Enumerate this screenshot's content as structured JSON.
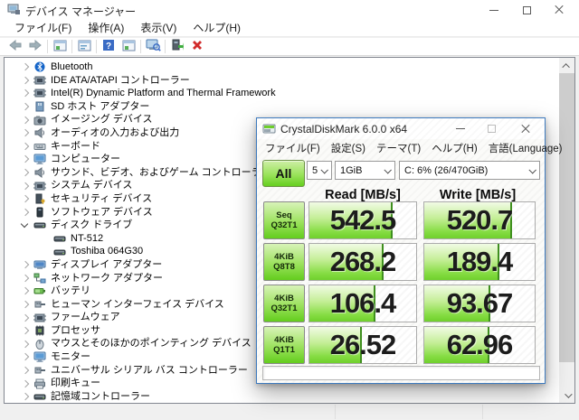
{
  "device_manager": {
    "title": "デバイス マネージャー",
    "menu": [
      "ファイル(F)",
      "操作(A)",
      "表示(V)",
      "ヘルプ(H)"
    ],
    "toolbar": [
      "back-icon",
      "forward-icon",
      "sep",
      "console-window-icon",
      "sep",
      "properties-icon",
      "sep",
      "help-icon",
      "show-window-icon",
      "sep",
      "scan-hardware-icon",
      "sep",
      "update-driver-icon",
      "uninstall-device-icon"
    ],
    "tree": [
      {
        "label": "Bluetooth",
        "icon": "bluetooth",
        "level": 0,
        "state": "collapsed"
      },
      {
        "label": "IDE ATA/ATAPI コントローラー",
        "icon": "chip",
        "level": 0,
        "state": "collapsed"
      },
      {
        "label": "Intel(R) Dynamic Platform and Thermal Framework",
        "icon": "chip",
        "level": 0,
        "state": "collapsed"
      },
      {
        "label": "SD ホスト アダプター",
        "icon": "card",
        "level": 0,
        "state": "collapsed"
      },
      {
        "label": "イメージング デバイス",
        "icon": "camera",
        "level": 0,
        "state": "collapsed"
      },
      {
        "label": "オーディオの入力および出力",
        "icon": "speaker",
        "level": 0,
        "state": "collapsed"
      },
      {
        "label": "キーボード",
        "icon": "keyboard",
        "level": 0,
        "state": "collapsed"
      },
      {
        "label": "コンピューター",
        "icon": "monitor",
        "level": 0,
        "state": "collapsed"
      },
      {
        "label": "サウンド、ビデオ、およびゲーム コントローラー",
        "icon": "speaker",
        "level": 0,
        "state": "collapsed"
      },
      {
        "label": "システム デバイス",
        "icon": "chip",
        "level": 0,
        "state": "collapsed"
      },
      {
        "label": "セキュリティ デバイス",
        "icon": "security",
        "level": 0,
        "state": "collapsed"
      },
      {
        "label": "ソフトウェア デバイス",
        "icon": "software",
        "level": 0,
        "state": "collapsed"
      },
      {
        "label": "ディスク ドライブ",
        "icon": "disk",
        "level": 0,
        "state": "expanded"
      },
      {
        "label": "NT-512",
        "icon": "disk",
        "level": 1,
        "state": "leaf"
      },
      {
        "label": "Toshiba 064G30",
        "icon": "disk",
        "level": 1,
        "state": "leaf"
      },
      {
        "label": "ディスプレイ アダプター",
        "icon": "display",
        "level": 0,
        "state": "collapsed"
      },
      {
        "label": "ネットワーク アダプター",
        "icon": "network",
        "level": 0,
        "state": "collapsed"
      },
      {
        "label": "バッテリ",
        "icon": "battery",
        "level": 0,
        "state": "collapsed"
      },
      {
        "label": "ヒューマン インターフェイス デバイス",
        "icon": "usb",
        "level": 0,
        "state": "collapsed"
      },
      {
        "label": "ファームウェア",
        "icon": "chip",
        "level": 0,
        "state": "collapsed"
      },
      {
        "label": "プロセッサ",
        "icon": "cpu",
        "level": 0,
        "state": "collapsed"
      },
      {
        "label": "マウスとそのほかのポインティング デバイス",
        "icon": "mouse",
        "level": 0,
        "state": "collapsed"
      },
      {
        "label": "モニター",
        "icon": "monitor",
        "level": 0,
        "state": "collapsed"
      },
      {
        "label": "ユニバーサル シリアル バス コントローラー",
        "icon": "usb",
        "level": 0,
        "state": "collapsed"
      },
      {
        "label": "印刷キュー",
        "icon": "printer",
        "level": 0,
        "state": "collapsed"
      },
      {
        "label": "記憶域コントローラー",
        "icon": "disk",
        "level": 0,
        "state": "collapsed"
      }
    ]
  },
  "cdm": {
    "title": "CrystalDiskMark 6.0.0 x64",
    "menu": [
      "ファイル(F)",
      "設定(S)",
      "テーマ(T)",
      "ヘルプ(H)",
      "言語(Language)"
    ],
    "all_button": "All",
    "test_count": "5",
    "test_size": "1GiB",
    "target_drive": "C: 6% (26/470GiB)",
    "read_header": "Read [MB/s]",
    "write_header": "Write [MB/s]",
    "comment_value": "",
    "rows": [
      {
        "label1": "Seq",
        "label2": "Q32T1",
        "read": "542.5",
        "write": "520.7",
        "read_fill": 77,
        "write_fill": 79
      },
      {
        "label1": "4KiB",
        "label2": "Q8T8",
        "read": "268.2",
        "write": "189.4",
        "read_fill": 69,
        "write_fill": 67
      },
      {
        "label1": "4KiB",
        "label2": "Q32T1",
        "read": "106.4",
        "write": "93.67",
        "read_fill": 61,
        "write_fill": 59
      },
      {
        "label1": "4KiB",
        "label2": "Q1T1",
        "read": "26.52",
        "write": "62.96",
        "read_fill": 48,
        "write_fill": 58
      }
    ],
    "accent_colors": {
      "bar_green": "#6fd02c",
      "bar_tick": "#3f8f1f",
      "window_border": "#3e7bbf"
    }
  },
  "accent_colors": {
    "uninstall_red": "#d12b2b",
    "help_blue": "#3a6bc4"
  }
}
